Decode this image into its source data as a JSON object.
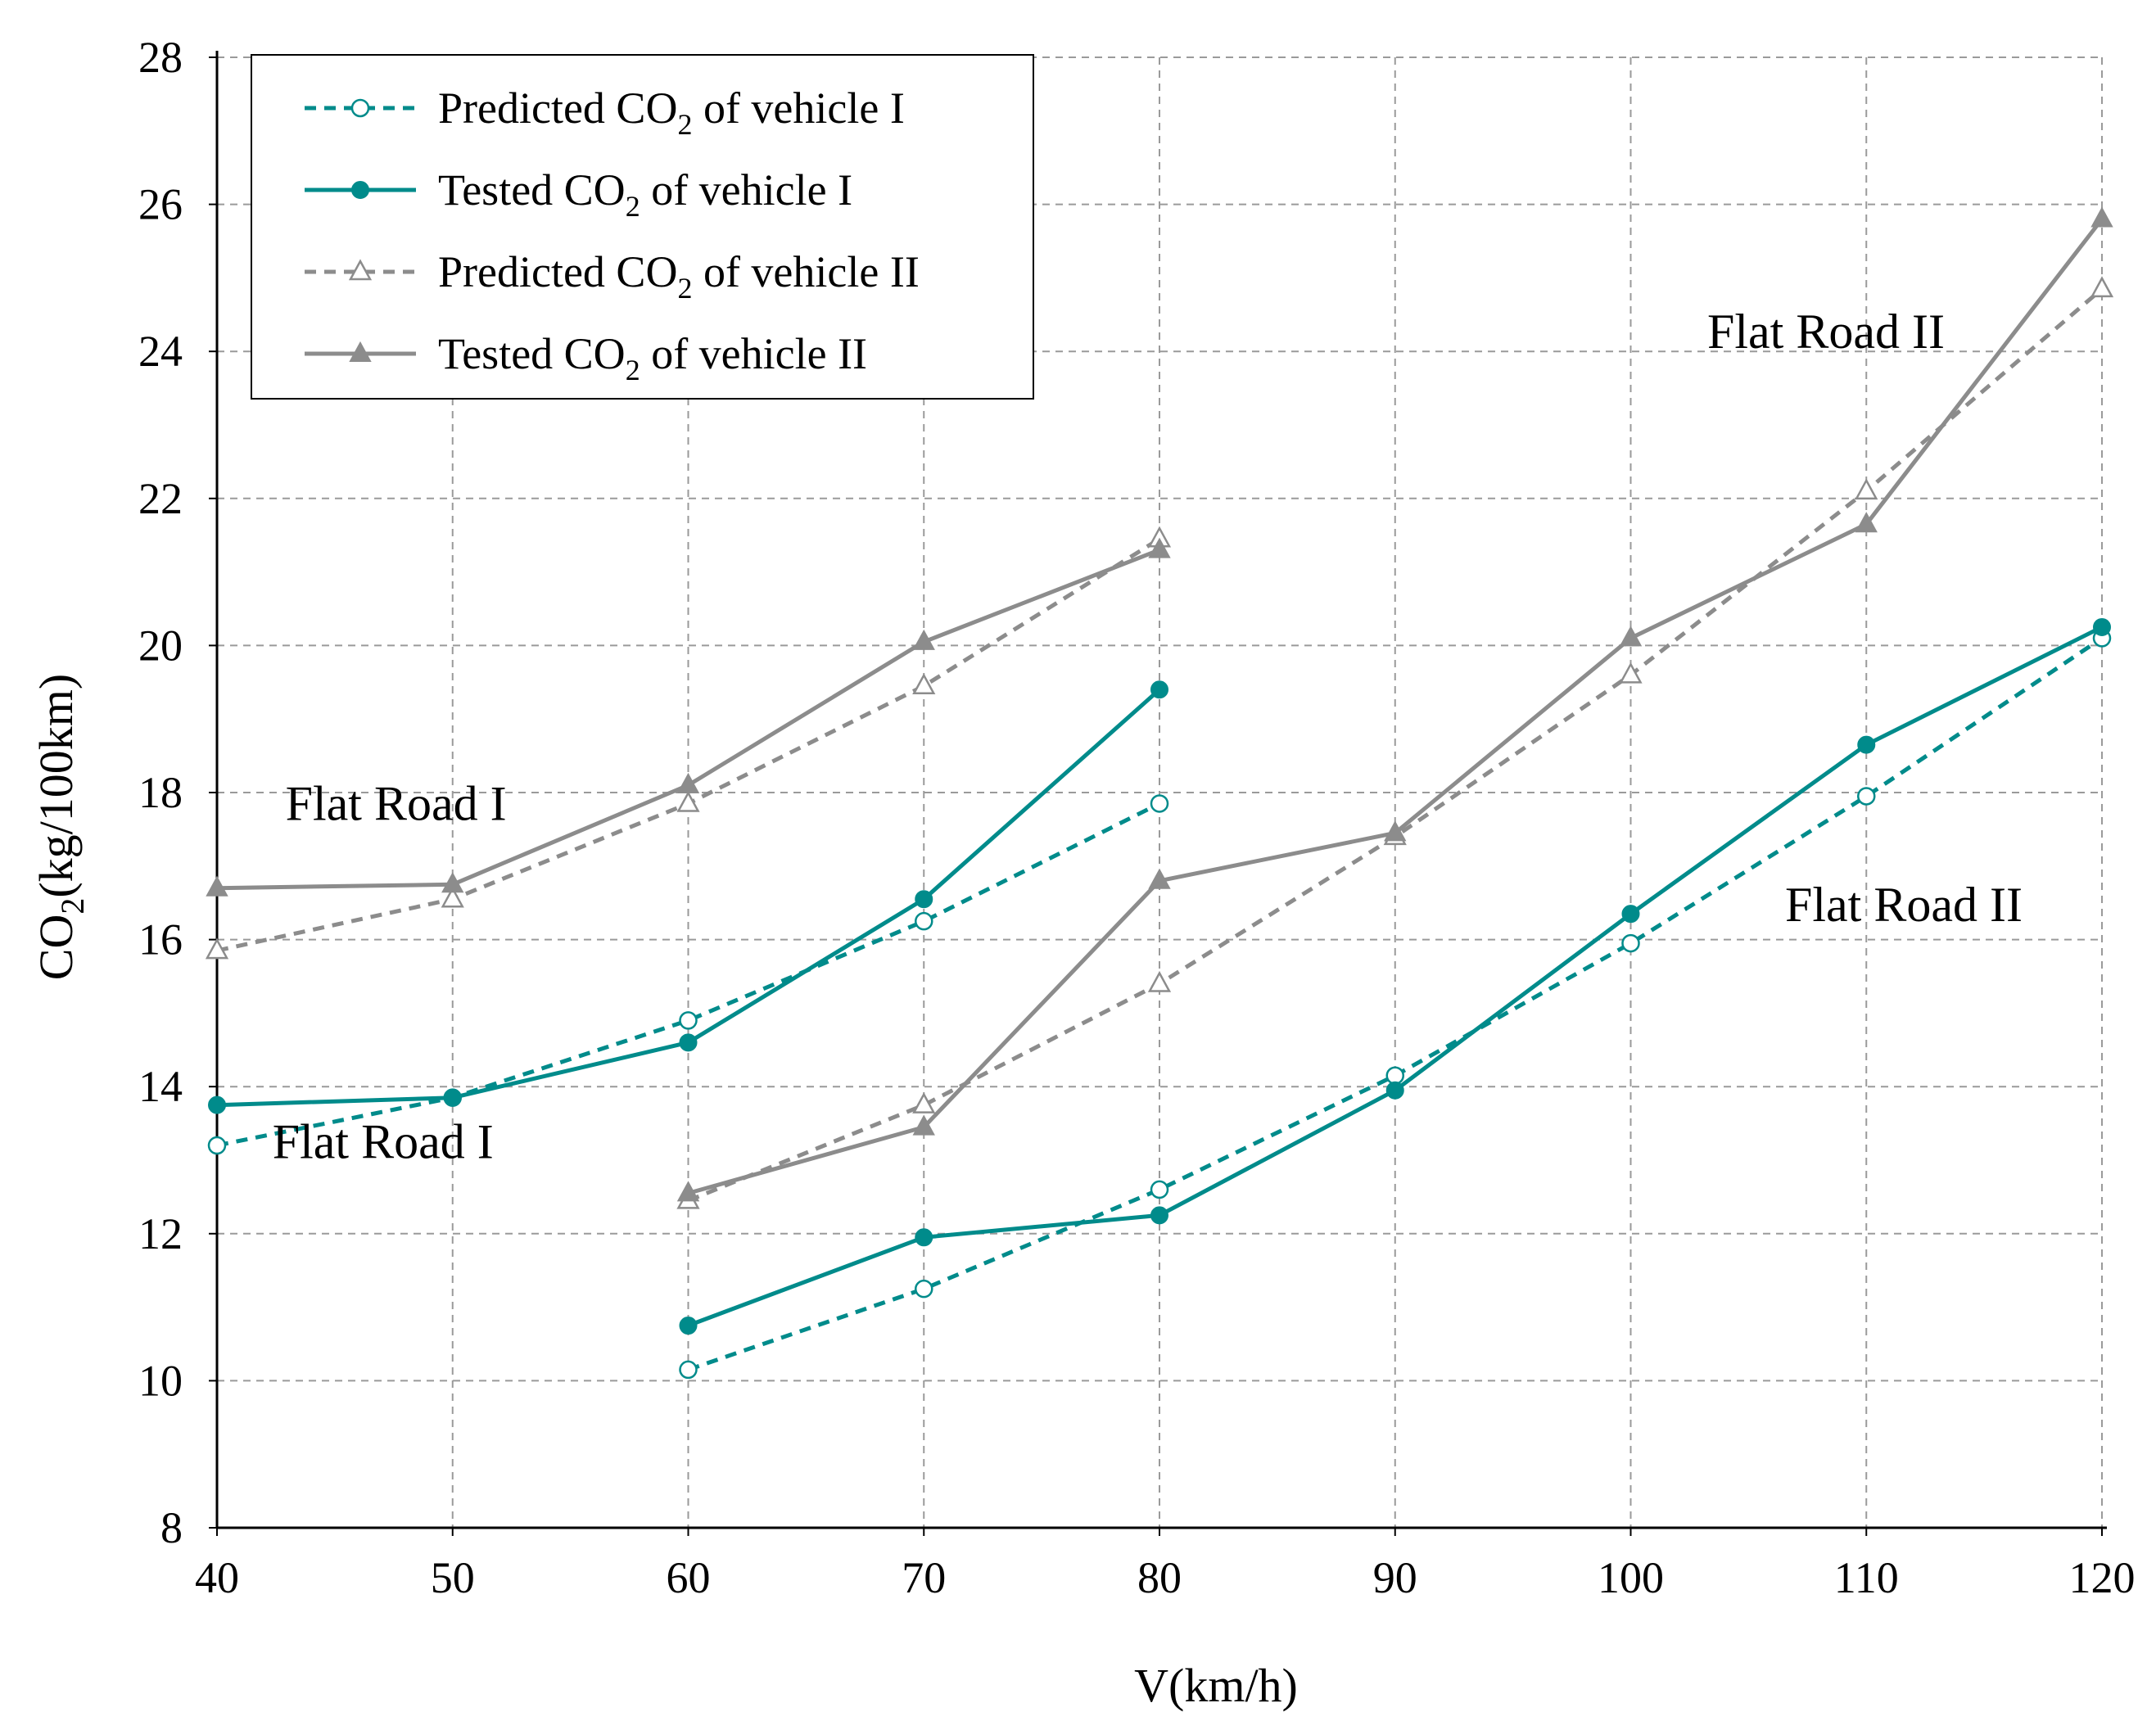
{
  "chart_data": {
    "type": "line",
    "title": "",
    "xlabel": "V(km/h)",
    "ylabel": {
      "prefix": "CO",
      "sub": "2",
      "suffix": "(kg/100km)"
    },
    "xlim": [
      40,
      120
    ],
    "ylim": [
      8,
      28
    ],
    "x_ticks": [
      40,
      50,
      60,
      70,
      80,
      90,
      100,
      110,
      120
    ],
    "y_ticks": [
      8,
      10,
      12,
      14,
      16,
      18,
      20,
      22,
      24,
      26,
      28
    ],
    "grid": true,
    "legend_position": "top-left",
    "colors": {
      "vehicle_I": "#008b8b",
      "vehicle_II": "#8c8c8c"
    },
    "series": [
      {
        "name": "Predicted CO2 of vehicle I",
        "legend_text": {
          "prefix": "Predicted CO",
          "sub": "2",
          "suffix": " of vehicle I"
        },
        "color_key": "vehicle_I",
        "dash": true,
        "marker": "circle-open",
        "segments": [
          {
            "road": "Flat Road I",
            "points": [
              [
                40,
                13.2
              ],
              [
                50,
                13.85
              ],
              [
                60,
                14.9
              ],
              [
                70,
                16.25
              ],
              [
                80,
                17.85
              ]
            ]
          },
          {
            "road": "Flat Road II",
            "points": [
              [
                60,
                10.15
              ],
              [
                70,
                11.25
              ],
              [
                80,
                12.6
              ],
              [
                90,
                14.15
              ],
              [
                100,
                15.95
              ],
              [
                110,
                17.95
              ],
              [
                120,
                20.1
              ]
            ]
          }
        ]
      },
      {
        "name": "Tested CO2 of vehicle I",
        "legend_text": {
          "prefix": "Tested CO",
          "sub": "2",
          "suffix": " of vehicle I"
        },
        "color_key": "vehicle_I",
        "dash": false,
        "marker": "circle-filled",
        "segments": [
          {
            "road": "Flat Road I",
            "points": [
              [
                40,
                13.75
              ],
              [
                50,
                13.85
              ],
              [
                60,
                14.6
              ],
              [
                70,
                16.55
              ],
              [
                80,
                19.4
              ]
            ]
          },
          {
            "road": "Flat Road II",
            "points": [
              [
                60,
                10.75
              ],
              [
                70,
                11.95
              ],
              [
                80,
                12.25
              ],
              [
                90,
                13.95
              ],
              [
                100,
                16.35
              ],
              [
                110,
                18.65
              ],
              [
                120,
                20.25
              ]
            ]
          }
        ]
      },
      {
        "name": "Predicted CO2 of vehicle II",
        "legend_text": {
          "prefix": "Predicted CO",
          "sub": "2",
          "suffix": " of vehicle II"
        },
        "color_key": "vehicle_II",
        "dash": true,
        "marker": "triangle-open",
        "segments": [
          {
            "road": "Flat Road I",
            "points": [
              [
                40,
                15.85
              ],
              [
                50,
                16.55
              ],
              [
                60,
                17.85
              ],
              [
                70,
                19.45
              ],
              [
                80,
                21.45
              ]
            ]
          },
          {
            "road": "Flat Road II",
            "points": [
              [
                60,
                12.45
              ],
              [
                70,
                13.75
              ],
              [
                80,
                15.4
              ],
              [
                90,
                17.4
              ],
              [
                100,
                19.6
              ],
              [
                110,
                22.1
              ],
              [
                120,
                24.85
              ]
            ]
          }
        ]
      },
      {
        "name": "Tested CO2 of vehicle II",
        "legend_text": {
          "prefix": "Tested CO",
          "sub": "2",
          "suffix": " of vehicle II"
        },
        "color_key": "vehicle_II",
        "dash": false,
        "marker": "triangle-filled",
        "segments": [
          {
            "road": "Flat Road I",
            "points": [
              [
                40,
                16.7
              ],
              [
                50,
                16.75
              ],
              [
                60,
                18.1
              ],
              [
                70,
                20.05
              ],
              [
                80,
                21.3
              ]
            ]
          },
          {
            "road": "Flat Road II",
            "points": [
              [
                60,
                12.55
              ],
              [
                70,
                13.45
              ],
              [
                80,
                16.8
              ],
              [
                90,
                17.45
              ],
              [
                100,
                20.1
              ],
              [
                110,
                21.65
              ],
              [
                120,
                25.8
              ]
            ]
          }
        ]
      }
    ],
    "annotations": [
      {
        "text": "Flat Road I",
        "x": 40.3,
        "y": 17.85
      },
      {
        "text": "Flat Road I",
        "x": 40.2,
        "y": 13.25
      },
      {
        "text": "Flat Road II",
        "x": 105.1,
        "y": 9.9
      },
      {
        "text": "Flat Road II",
        "x": 108.6,
        "y": 9.9
      }
    ]
  }
}
